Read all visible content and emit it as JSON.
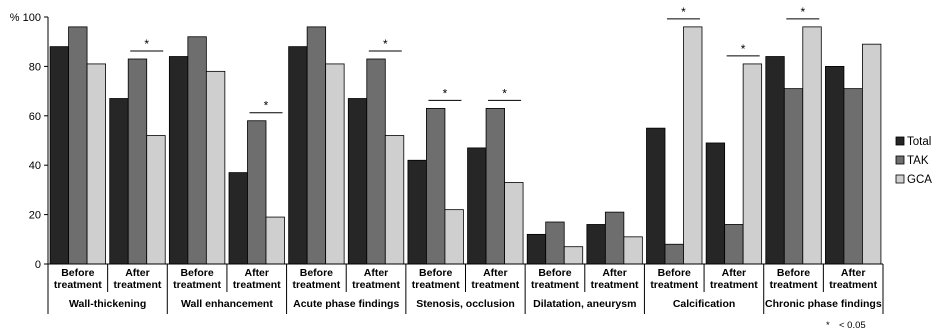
{
  "chart_data": {
    "type": "bar",
    "y_unit": "%",
    "ylim": [
      0,
      100
    ],
    "yticks": [
      0,
      20,
      40,
      60,
      80,
      100
    ],
    "grid": false,
    "legend_position": "right",
    "series": [
      {
        "name": "Total",
        "color": "#262626"
      },
      {
        "name": "TAK",
        "color": "#6e6e6e"
      },
      {
        "name": "GCA",
        "color": "#cfcfcf"
      }
    ],
    "categories": [
      {
        "line1": "Before",
        "line2": "treatment",
        "values": [
          88,
          96,
          81
        ]
      },
      {
        "line1": "After",
        "line2": "treatment",
        "values": [
          67,
          83,
          52
        ]
      },
      {
        "line1": "Before",
        "line2": "treatment",
        "values": [
          84,
          92,
          78
        ]
      },
      {
        "line1": "After",
        "line2": "treatment",
        "values": [
          37,
          58,
          19
        ]
      },
      {
        "line1": "Before",
        "line2": "treatment",
        "values": [
          88,
          96,
          81
        ]
      },
      {
        "line1": "After",
        "line2": "treatment",
        "values": [
          67,
          83,
          52
        ]
      },
      {
        "line1": "Before",
        "line2": "treatment",
        "values": [
          42,
          63,
          22
        ]
      },
      {
        "line1": "After",
        "line2": "treatment",
        "values": [
          47,
          63,
          33
        ]
      },
      {
        "line1": "Before",
        "line2": "treatment",
        "values": [
          12,
          17,
          7
        ]
      },
      {
        "line1": "After",
        "line2": "treatment",
        "values": [
          16,
          21,
          11
        ]
      },
      {
        "line1": "Before",
        "line2": "treatment",
        "values": [
          55,
          8,
          96
        ]
      },
      {
        "line1": "After",
        "line2": "treatment",
        "values": [
          49,
          16,
          81
        ]
      },
      {
        "line1": "Before",
        "line2": "treatment",
        "values": [
          84,
          71,
          96
        ]
      },
      {
        "line1": "After",
        "line2": "treatment",
        "values": [
          80,
          71,
          89
        ]
      }
    ],
    "groups": [
      "Wall-thickening",
      "Wall enhancement",
      "Acute phase findings",
      "Stenosis, occlusion",
      "Dilatation, aneurysm",
      "Calcification",
      "Chronic phase findings"
    ],
    "significance": [
      {
        "category": 1,
        "between": [
          1,
          2
        ],
        "label": "*"
      },
      {
        "category": 3,
        "between": [
          1,
          2
        ],
        "label": "*"
      },
      {
        "category": 5,
        "between": [
          1,
          2
        ],
        "label": "*"
      },
      {
        "category": 6,
        "between": [
          1,
          2
        ],
        "label": "*"
      },
      {
        "category": 7,
        "between": [
          1,
          2
        ],
        "label": "*"
      },
      {
        "category": 10,
        "between": [
          1,
          2
        ],
        "label": "*"
      },
      {
        "category": 11,
        "between": [
          1,
          2
        ],
        "label": "*"
      },
      {
        "category": 12,
        "between": [
          1,
          2
        ],
        "label": "*"
      }
    ],
    "footnote": {
      "symbol": "*",
      "text": "< 0.05"
    }
  }
}
